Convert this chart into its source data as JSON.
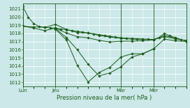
{
  "bg_color": "#cce8e8",
  "grid_color": "#ffffff",
  "line_color": "#1a5c1a",
  "title": "Pression niveau de la mer( hPa )",
  "ylim": [
    1011.5,
    1021.7
  ],
  "yticks": [
    1012,
    1013,
    1014,
    1015,
    1016,
    1017,
    1018,
    1019,
    1020,
    1021
  ],
  "xtick_labels": [
    "Lun",
    "Jeu",
    "Mar",
    "Mer"
  ],
  "xtick_positions": [
    0,
    12,
    36,
    48
  ],
  "total_hours": 60,
  "line1_x": [
    0,
    2,
    4,
    6,
    8,
    10,
    12,
    14,
    16,
    18,
    20,
    22,
    24,
    26,
    28,
    30,
    32,
    34,
    36,
    38,
    40,
    42,
    44,
    46,
    48,
    50,
    52,
    54,
    56,
    58,
    60
  ],
  "line1_y": [
    1021.3,
    1020.0,
    1019.2,
    1018.85,
    1018.75,
    1018.68,
    1018.65,
    1018.55,
    1018.45,
    1018.35,
    1018.25,
    1018.15,
    1018.05,
    1017.95,
    1017.85,
    1017.75,
    1017.65,
    1017.55,
    1017.45,
    1017.42,
    1017.38,
    1017.35,
    1017.32,
    1017.28,
    1017.25,
    1017.5,
    1018.0,
    1017.7,
    1017.5,
    1017.25,
    1017.1
  ],
  "line2_x": [
    0,
    4,
    8,
    12,
    16,
    20,
    24,
    28,
    32,
    36,
    40,
    44,
    48,
    52,
    56,
    60
  ],
  "line2_y": [
    1018.9,
    1018.8,
    1018.75,
    1019.1,
    1018.5,
    1018.1,
    1018.05,
    1017.75,
    1017.55,
    1017.4,
    1017.3,
    1017.25,
    1017.25,
    1017.6,
    1017.35,
    1017.1
  ],
  "line3_x": [
    0,
    4,
    8,
    12,
    16,
    20,
    24,
    28,
    32,
    36,
    40,
    44,
    48,
    52,
    56,
    60
  ],
  "line3_y": [
    1018.9,
    1018.65,
    1018.35,
    1018.65,
    1018.05,
    1017.6,
    1017.45,
    1017.15,
    1016.95,
    1017.05,
    1017.05,
    1017.1,
    1017.2,
    1017.75,
    1017.4,
    1017.1
  ],
  "line4_x": [
    12,
    16,
    20,
    24,
    28,
    32,
    36,
    40,
    44,
    48
  ],
  "line4_y": [
    1018.6,
    1017.5,
    1016.0,
    1014.2,
    1012.8,
    1013.15,
    1013.9,
    1015.1,
    1015.5,
    1016.1
  ],
  "line5_x": [
    12,
    16,
    20,
    24,
    28,
    32,
    36,
    40,
    44,
    48,
    52,
    56,
    60
  ],
  "line5_y": [
    1018.5,
    1017.2,
    1014.1,
    1012.05,
    1013.2,
    1013.85,
    1015.1,
    1015.5,
    1015.5,
    1016.1,
    1017.3,
    1017.1,
    1017.0
  ],
  "title_fontsize": 6.0,
  "tick_fontsize": 5.0,
  "linewidth": 0.7,
  "markersize": 1.8
}
